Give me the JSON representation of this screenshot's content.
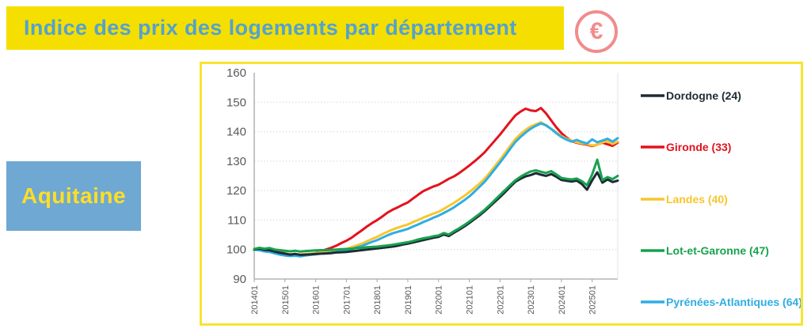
{
  "header": {
    "title": "Indice des prix des logements par département",
    "banner_bg": "#F5DF00",
    "title_color": "#53A2CF",
    "euro_icon_glyph": "€",
    "euro_icon_color": "#F18C8C"
  },
  "region_label": {
    "text": "Aquitaine",
    "bg": "#6FA8D2",
    "text_color": "#FFDE26"
  },
  "chart_data": {
    "type": "line",
    "title": "",
    "xlabel": "",
    "ylabel": "",
    "ylim": [
      90,
      160
    ],
    "y_ticks": [
      160,
      150,
      140,
      130,
      120,
      110,
      100,
      90
    ],
    "grid": "horizontal-dotted",
    "legend_position": "right",
    "x_tick_labels": [
      "201401",
      "201501",
      "201601",
      "201701",
      "201801",
      "201901",
      "202001",
      "202101",
      "202201",
      "202301",
      "202401",
      "202501"
    ],
    "x": [
      "201401",
      "201403",
      "201405",
      "201407",
      "201409",
      "201411",
      "201501",
      "201503",
      "201505",
      "201507",
      "201509",
      "201511",
      "201601",
      "201603",
      "201605",
      "201607",
      "201609",
      "201611",
      "201701",
      "201703",
      "201705",
      "201707",
      "201709",
      "201711",
      "201801",
      "201803",
      "201805",
      "201807",
      "201809",
      "201811",
      "201901",
      "201903",
      "201905",
      "201907",
      "201909",
      "201911",
      "202001",
      "202003",
      "202005",
      "202007",
      "202009",
      "202011",
      "202101",
      "202103",
      "202105",
      "202107",
      "202109",
      "202111",
      "202201",
      "202203",
      "202205",
      "202207",
      "202209",
      "202211",
      "202301",
      "202303",
      "202305",
      "202307",
      "202309",
      "202311",
      "202401",
      "202403",
      "202405",
      "202407",
      "202409",
      "202411",
      "202501",
      "202503",
      "202505",
      "202507",
      "202509",
      "202511"
    ],
    "series": [
      {
        "name": "Dordogne (24)",
        "key": "dordogne",
        "color": "#1E2B36",
        "values": [
          100.0,
          100.3,
          99.9,
          99.8,
          99.3,
          98.9,
          98.6,
          98.3,
          98.5,
          98.2,
          98.3,
          98.4,
          98.5,
          98.6,
          98.7,
          98.8,
          99.0,
          99.1,
          99.2,
          99.4,
          99.6,
          99.8,
          100.0,
          100.2,
          100.4,
          100.6,
          100.8,
          101.0,
          101.3,
          101.7,
          102.0,
          102.4,
          102.8,
          103.2,
          103.6,
          104.0,
          104.3,
          105.1,
          104.6,
          105.7,
          106.7,
          107.8,
          109.0,
          110.3,
          111.6,
          113.0,
          114.6,
          116.2,
          117.8,
          119.5,
          121.3,
          123.0,
          124.0,
          124.8,
          125.3,
          125.9,
          125.4,
          125.0,
          125.6,
          124.7,
          123.6,
          123.3,
          123.1,
          123.4,
          122.2,
          120.3,
          123.5,
          126.2,
          122.7,
          123.8,
          122.9,
          123.4
        ]
      },
      {
        "name": "Gironde (33)",
        "key": "gironde",
        "color": "#E3121D",
        "values": [
          100.0,
          100.4,
          100.1,
          100.4,
          99.6,
          99.1,
          98.7,
          98.3,
          98.5,
          98.0,
          98.2,
          98.5,
          98.8,
          99.5,
          100.0,
          100.6,
          101.3,
          102.2,
          103.0,
          104.0,
          105.3,
          106.5,
          107.8,
          109.0,
          110.0,
          111.2,
          112.5,
          113.5,
          114.3,
          115.2,
          116.0,
          117.3,
          118.6,
          119.8,
          120.6,
          121.4,
          122.0,
          123.0,
          124.0,
          124.8,
          125.9,
          127.2,
          128.5,
          129.9,
          131.4,
          133.0,
          135.0,
          137.0,
          139.0,
          141.2,
          143.4,
          145.5,
          146.8,
          147.8,
          147.2,
          147.0,
          148.0,
          146.2,
          143.8,
          141.5,
          139.5,
          138.0,
          136.8,
          136.2,
          135.9,
          135.6,
          135.1,
          135.6,
          136.3,
          135.7,
          135.2,
          136.3
        ]
      },
      {
        "name": "Landes (40)",
        "key": "landes",
        "color": "#F8C62C",
        "values": [
          100.0,
          100.2,
          99.8,
          99.6,
          99.2,
          98.9,
          98.6,
          98.4,
          98.5,
          98.3,
          98.5,
          98.6,
          98.8,
          99.0,
          99.1,
          99.3,
          99.6,
          99.9,
          100.2,
          100.8,
          101.4,
          102.0,
          102.8,
          103.6,
          104.3,
          105.2,
          106.0,
          106.8,
          107.4,
          108.0,
          108.5,
          109.3,
          110.0,
          110.8,
          111.5,
          112.2,
          112.8,
          113.8,
          114.8,
          115.8,
          117.0,
          118.2,
          119.5,
          120.9,
          122.4,
          124.0,
          126.1,
          128.3,
          130.5,
          132.8,
          135.2,
          137.5,
          139.2,
          140.6,
          141.8,
          142.5,
          143.2,
          142.0,
          140.9,
          139.8,
          138.5,
          137.6,
          137.0,
          136.4,
          136.1,
          135.8,
          135.3,
          135.6,
          136.4,
          136.8,
          135.8,
          136.6
        ]
      },
      {
        "name": "Lot-et-Garonne (47)",
        "key": "lot-et-garonne",
        "color": "#17A24E",
        "values": [
          100.2,
          100.6,
          100.3,
          100.5,
          100.0,
          99.8,
          99.6,
          99.4,
          99.6,
          99.3,
          99.5,
          99.6,
          99.7,
          99.8,
          99.8,
          99.9,
          100.0,
          100.1,
          100.2,
          100.3,
          100.5,
          100.6,
          100.8,
          100.9,
          101.0,
          101.2,
          101.4,
          101.6,
          101.9,
          102.2,
          102.5,
          102.9,
          103.4,
          103.8,
          104.1,
          104.5,
          104.8,
          105.6,
          105.1,
          106.2,
          107.2,
          108.3,
          109.5,
          110.8,
          112.1,
          113.5,
          115.1,
          116.8,
          118.5,
          120.2,
          121.9,
          123.5,
          124.7,
          125.7,
          126.5,
          126.9,
          126.4,
          126.0,
          126.6,
          125.5,
          124.3,
          124.0,
          123.8,
          124.1,
          123.2,
          121.8,
          125.5,
          130.5,
          123.6,
          124.6,
          123.9,
          125.0
        ]
      },
      {
        "name": "Pyrénées-Atlantiques (64)",
        "key": "pyrenees-atlantiques",
        "color": "#2FADE3",
        "values": [
          100.0,
          99.8,
          99.4,
          99.2,
          98.7,
          98.3,
          98.0,
          97.8,
          97.9,
          97.7,
          98.0,
          98.2,
          98.4,
          98.6,
          98.7,
          98.9,
          99.1,
          99.4,
          99.6,
          100.1,
          100.7,
          101.2,
          101.9,
          102.6,
          103.2,
          104.0,
          104.8,
          105.5,
          106.0,
          106.5,
          107.0,
          107.8,
          108.5,
          109.3,
          110.0,
          110.8,
          111.5,
          112.4,
          113.3,
          114.3,
          115.5,
          116.7,
          118.0,
          119.6,
          121.3,
          123.0,
          125.1,
          127.3,
          129.5,
          131.8,
          134.2,
          136.5,
          138.2,
          139.7,
          141.0,
          142.0,
          142.8,
          142.2,
          140.9,
          139.5,
          138.2,
          137.3,
          136.6,
          137.2,
          136.5,
          136.0,
          137.4,
          136.4,
          137.0,
          137.6,
          136.6,
          137.8
        ]
      }
    ]
  }
}
